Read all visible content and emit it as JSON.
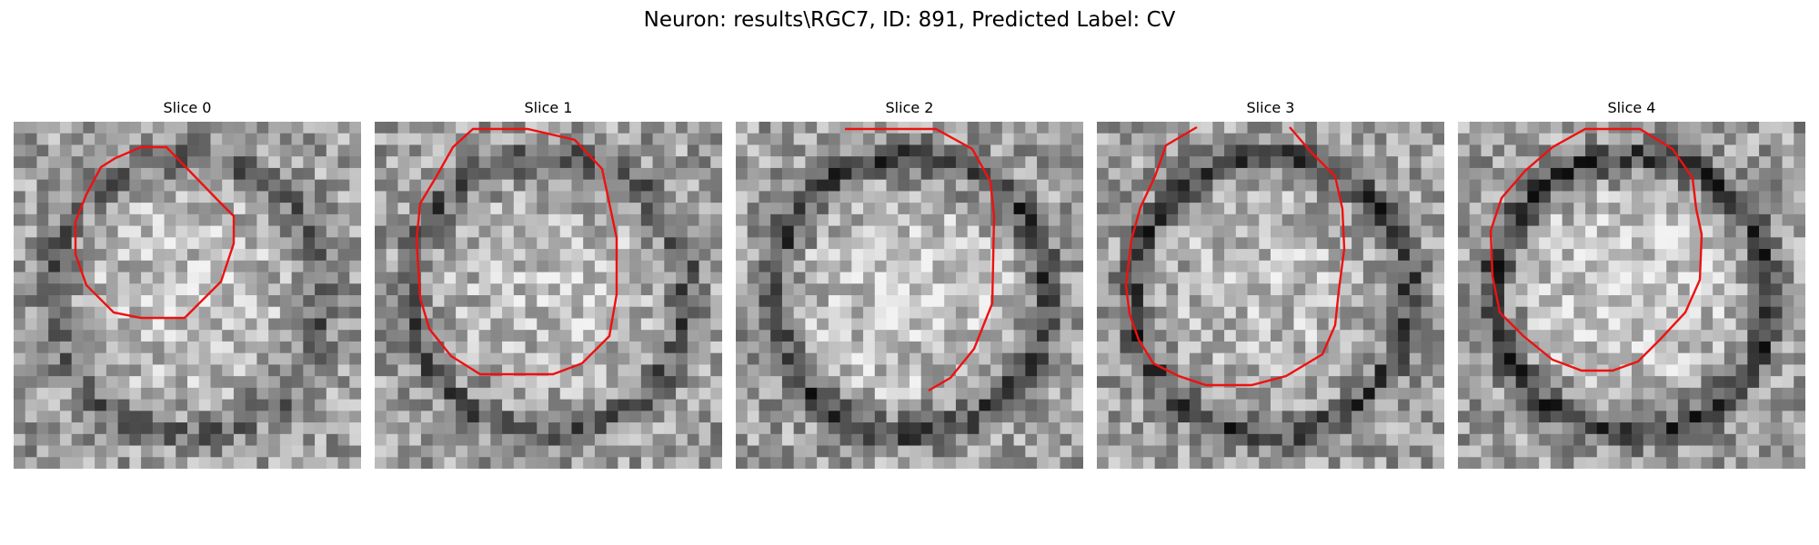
{
  "figure": {
    "title": "Neuron: results\\RGC7, ID: 891, Predicted Label: CV"
  },
  "panels": [
    {
      "title": "Slice 0",
      "seed": 11,
      "dark_ring": 0.45,
      "bright_core": 0.55
    },
    {
      "title": "Slice 1",
      "seed": 23,
      "dark_ring": 0.55,
      "bright_core": 0.45
    },
    {
      "title": "Slice 2",
      "seed": 37,
      "dark_ring": 0.75,
      "bright_core": 0.6
    },
    {
      "title": "Slice 3",
      "seed": 51,
      "dark_ring": 0.7,
      "bright_core": 0.4
    },
    {
      "title": "Slice 4",
      "seed": 67,
      "dark_ring": 0.8,
      "bright_core": 0.7
    }
  ],
  "style": {
    "contour_color": "#ee1111",
    "background": "#ffffff"
  }
}
